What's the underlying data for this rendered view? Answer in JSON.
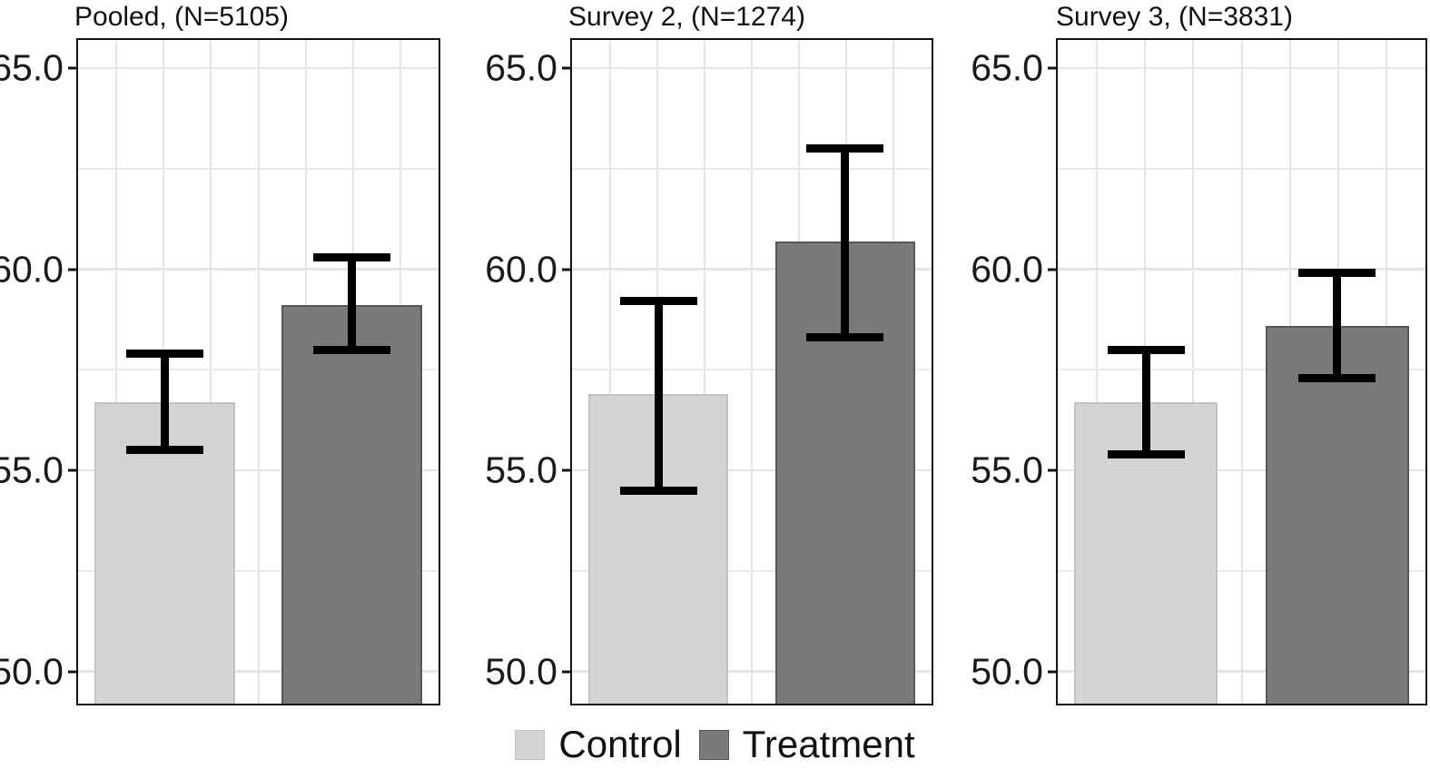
{
  "chart_data": {
    "type": "bar",
    "description": "Three-panel grouped bar chart with 95% CI error bars comparing Control vs Treatment",
    "panels": [
      {
        "title": "Pooled, (N=5105)",
        "bars": [
          {
            "group": "Control",
            "mean": 56.7,
            "ci_low": 55.5,
            "ci_high": 57.9
          },
          {
            "group": "Treatment",
            "mean": 59.1,
            "ci_low": 58.0,
            "ci_high": 60.3
          }
        ]
      },
      {
        "title": "Survey 2, (N=1274)",
        "bars": [
          {
            "group": "Control",
            "mean": 56.9,
            "ci_low": 54.5,
            "ci_high": 59.2
          },
          {
            "group": "Treatment",
            "mean": 60.7,
            "ci_low": 58.3,
            "ci_high": 63.0
          }
        ]
      },
      {
        "title": "Survey 3, (N=3831)",
        "bars": [
          {
            "group": "Control",
            "mean": 56.7,
            "ci_low": 55.4,
            "ci_high": 58.0
          },
          {
            "group": "Treatment",
            "mean": 58.6,
            "ci_low": 57.3,
            "ci_high": 59.9
          }
        ]
      }
    ],
    "y_axis": {
      "ticks": [
        50.0,
        55.0,
        60.0,
        65.0
      ],
      "tick_labels": [
        "50.0",
        "55.0",
        "60.0",
        "65.0"
      ],
      "minor_ticks": [
        52.5,
        57.5,
        62.5
      ],
      "ylim": [
        49.2,
        65.7
      ]
    },
    "x_axis": {
      "categories": [
        "Control",
        "Treatment"
      ],
      "tick_labels_shown": false
    },
    "legend": [
      {
        "label": "Control",
        "color": "#d4d4d4"
      },
      {
        "label": "Treatment",
        "color": "#7a7a7a"
      }
    ],
    "error_bars": true,
    "grid": true,
    "legend_position": "bottom"
  },
  "colors": {
    "control_fill": "#d4d4d4",
    "control_border": "#c3c3c3",
    "treatment_fill": "#7a7a7a",
    "treatment_border": "#565656",
    "error_bar": "#000000",
    "gridline_major": "#e4e4e4",
    "gridline_minor": "#ebebeb",
    "panel_border": "#141414",
    "text": "#111111"
  }
}
